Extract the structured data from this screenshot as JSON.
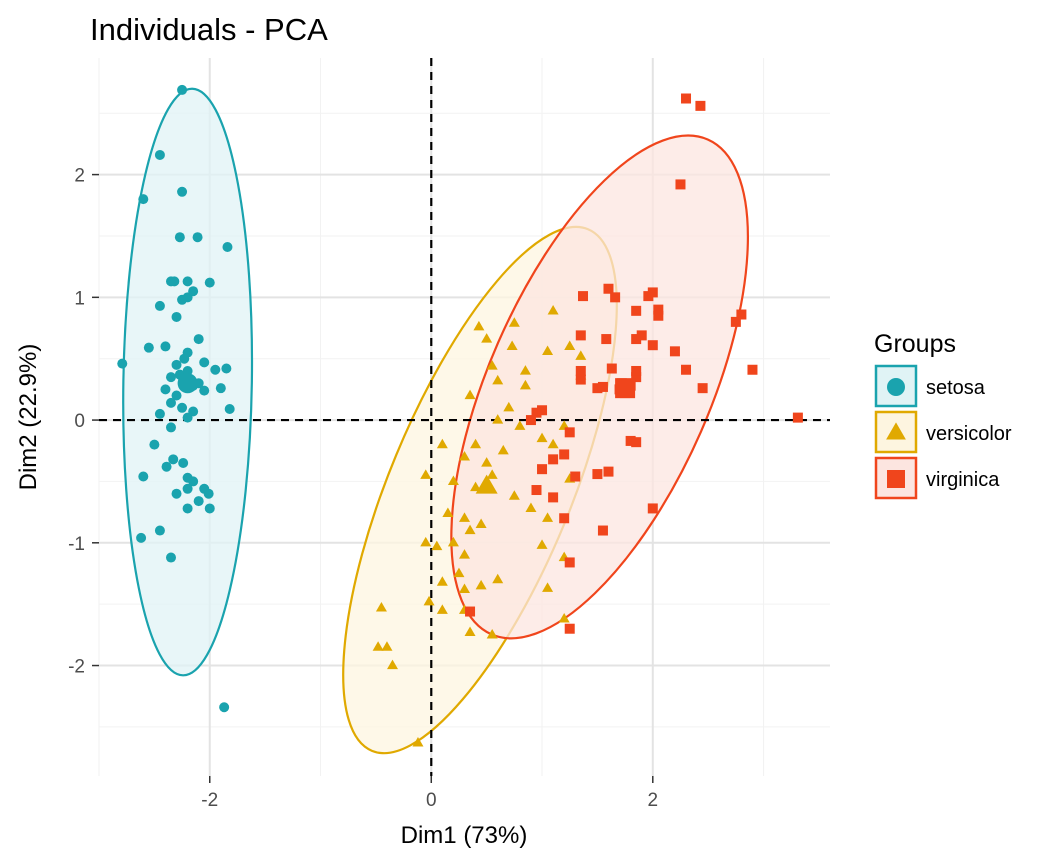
{
  "chart_data": {
    "type": "scatter",
    "title": "Individuals - PCA",
    "xlabel": "Dim1 (73%)",
    "ylabel": "Dim2 (22.9%)",
    "xlim": [
      -3.0,
      3.6
    ],
    "ylim": [
      -2.9,
      2.95
    ],
    "x_ticks": [
      -2,
      0,
      2
    ],
    "x_tick_labels": [
      "-2",
      "0",
      "2"
    ],
    "y_ticks": [
      -2,
      -1,
      0,
      1,
      2
    ],
    "y_tick_labels": [
      "-2",
      "-1",
      "0",
      "1",
      "2"
    ],
    "grid": true,
    "reference_lines": {
      "x": 0,
      "y": 0,
      "style": "dashed"
    },
    "legend": {
      "title": "Groups",
      "placement": "right"
    },
    "series": [
      {
        "name": "setosa",
        "marker": "circle",
        "color": "#1AA3AE",
        "fill": "#E0F3F5",
        "ellipse": {
          "cx": -2.2,
          "cy": 0.31,
          "rx": 0.58,
          "ry": 2.39,
          "angle": 0.9
        },
        "centroid": [
          -2.2,
          0.3
        ],
        "points": [
          [
            -2.25,
            2.69
          ],
          [
            -2.25,
            1.86
          ],
          [
            -2.27,
            1.49
          ],
          [
            -2.11,
            1.49
          ],
          [
            -1.84,
            1.41
          ],
          [
            -2.6,
            1.8
          ],
          [
            -2.45,
            2.16
          ],
          [
            -2.35,
            1.13
          ],
          [
            -2.32,
            1.13
          ],
          [
            -2.2,
            1.13
          ],
          [
            -2.25,
            0.98
          ],
          [
            -2.2,
            1.0
          ],
          [
            -2.15,
            1.05
          ],
          [
            -2.0,
            1.12
          ],
          [
            -2.45,
            0.93
          ],
          [
            -2.3,
            0.84
          ],
          [
            -2.1,
            0.66
          ],
          [
            -2.2,
            0.55
          ],
          [
            -2.55,
            0.59
          ],
          [
            -2.4,
            0.6
          ],
          [
            -2.23,
            0.5
          ],
          [
            -2.3,
            0.45
          ],
          [
            -2.27,
            0.37
          ],
          [
            -2.05,
            0.47
          ],
          [
            -1.95,
            0.41
          ],
          [
            -1.85,
            0.42
          ],
          [
            -2.79,
            0.46
          ],
          [
            -2.35,
            0.35
          ],
          [
            -2.2,
            0.4
          ],
          [
            -2.15,
            0.28
          ],
          [
            -2.4,
            0.25
          ],
          [
            -2.3,
            0.2
          ],
          [
            -2.1,
            0.3
          ],
          [
            -2.05,
            0.24
          ],
          [
            -1.9,
            0.26
          ],
          [
            -2.35,
            0.14
          ],
          [
            -2.25,
            0.1
          ],
          [
            -2.15,
            0.07
          ],
          [
            -2.45,
            0.05
          ],
          [
            -2.2,
            0.02
          ],
          [
            -1.82,
            0.09
          ],
          [
            -2.35,
            -0.06
          ],
          [
            -2.5,
            -0.2
          ],
          [
            -2.39,
            -0.38
          ],
          [
            -2.33,
            -0.32
          ],
          [
            -2.24,
            -0.35
          ],
          [
            -2.2,
            -0.47
          ],
          [
            -2.15,
            -0.5
          ],
          [
            -2.05,
            -0.56
          ],
          [
            -2.2,
            -0.56
          ],
          [
            -2.01,
            -0.6
          ],
          [
            -2.3,
            -0.6
          ],
          [
            -2.1,
            -0.66
          ],
          [
            -2.0,
            -0.72
          ],
          [
            -2.2,
            -0.72
          ],
          [
            -2.45,
            -0.9
          ],
          [
            -2.62,
            -0.96
          ],
          [
            -2.6,
            -0.46
          ],
          [
            -2.35,
            -1.12
          ],
          [
            -1.87,
            -2.34
          ]
        ]
      },
      {
        "name": "versicolor",
        "marker": "triangle",
        "color": "#E0A900",
        "fill": "#FDF5E0",
        "ellipse": {
          "cx": 0.44,
          "cy": -0.57,
          "rx": 0.82,
          "ry": 2.3,
          "angle": 22.5
        },
        "centroid": [
          0.5,
          -0.54
        ],
        "points": [
          [
            0.43,
            0.76
          ],
          [
            0.75,
            0.79
          ],
          [
            1.1,
            0.89
          ],
          [
            0.5,
            0.66
          ],
          [
            0.73,
            0.6
          ],
          [
            1.05,
            0.56
          ],
          [
            0.85,
            0.4
          ],
          [
            0.55,
            0.44
          ],
          [
            0.6,
            0.32
          ],
          [
            0.85,
            0.28
          ],
          [
            1.35,
            0.52
          ],
          [
            1.35,
            0.36
          ],
          [
            1.25,
            0.6
          ],
          [
            0.35,
            0.2
          ],
          [
            0.7,
            0.1
          ],
          [
            0.6,
            0.0
          ],
          [
            0.8,
            -0.05
          ],
          [
            0.4,
            -0.2
          ],
          [
            0.1,
            -0.2
          ],
          [
            0.3,
            -0.3
          ],
          [
            0.5,
            -0.35
          ],
          [
            0.65,
            -0.25
          ],
          [
            0.2,
            -0.5
          ],
          [
            0.4,
            -0.55
          ],
          [
            0.55,
            -0.45
          ],
          [
            1.0,
            -0.15
          ],
          [
            1.2,
            -0.05
          ],
          [
            1.1,
            -0.2
          ],
          [
            1.25,
            -0.48
          ],
          [
            0.75,
            -0.62
          ],
          [
            0.9,
            -0.72
          ],
          [
            1.05,
            -0.8
          ],
          [
            0.15,
            -0.76
          ],
          [
            0.3,
            -0.8
          ],
          [
            0.35,
            -0.9
          ],
          [
            0.2,
            -1.0
          ],
          [
            0.45,
            -0.85
          ],
          [
            0.3,
            -1.1
          ],
          [
            0.25,
            -1.25
          ],
          [
            1.0,
            -1.02
          ],
          [
            1.2,
            -1.12
          ],
          [
            -0.05,
            -1.0
          ],
          [
            0.1,
            -1.32
          ],
          [
            0.3,
            -1.38
          ],
          [
            0.1,
            -1.55
          ],
          [
            0.3,
            -1.55
          ],
          [
            0.45,
            -1.35
          ],
          [
            0.6,
            -1.3
          ],
          [
            1.05,
            -1.37
          ],
          [
            -0.45,
            -1.53
          ],
          [
            -0.02,
            -1.48
          ],
          [
            0.05,
            -1.03
          ],
          [
            -0.05,
            -0.45
          ],
          [
            1.2,
            -1.62
          ],
          [
            0.55,
            -1.75
          ],
          [
            0.35,
            -1.73
          ],
          [
            -0.48,
            -1.85
          ],
          [
            -0.35,
            -2.0
          ],
          [
            -0.12,
            -2.63
          ],
          [
            -0.4,
            -1.85
          ]
        ]
      },
      {
        "name": "virginica",
        "marker": "square",
        "color": "#F0451C",
        "fill": "#FCE5E0",
        "ellipse": {
          "cx": 1.52,
          "cy": 0.27,
          "rx": 1.0,
          "ry": 2.2,
          "angle": 23.6
        },
        "centroid": [
          1.75,
          0.26
        ],
        "points": [
          [
            2.3,
            2.62
          ],
          [
            2.43,
            2.56
          ],
          [
            2.25,
            1.92
          ],
          [
            1.37,
            1.01
          ],
          [
            1.6,
            1.07
          ],
          [
            1.66,
            1.0
          ],
          [
            1.96,
            1.01
          ],
          [
            2.0,
            1.04
          ],
          [
            1.85,
            0.89
          ],
          [
            2.05,
            0.9
          ],
          [
            2.05,
            0.85
          ],
          [
            1.35,
            0.69
          ],
          [
            1.58,
            0.66
          ],
          [
            1.85,
            0.66
          ],
          [
            1.9,
            0.69
          ],
          [
            2.0,
            0.61
          ],
          [
            2.2,
            0.56
          ],
          [
            2.75,
            0.8
          ],
          [
            2.8,
            0.86
          ],
          [
            2.9,
            0.41
          ],
          [
            2.3,
            0.41
          ],
          [
            1.35,
            0.4
          ],
          [
            1.63,
            0.42
          ],
          [
            1.85,
            0.35
          ],
          [
            1.85,
            0.4
          ],
          [
            1.35,
            0.33
          ],
          [
            1.5,
            0.26
          ],
          [
            1.55,
            0.27
          ],
          [
            1.7,
            0.25
          ],
          [
            1.72,
            0.3
          ],
          [
            1.75,
            0.22
          ],
          [
            1.8,
            0.28
          ],
          [
            2.45,
            0.26
          ],
          [
            3.31,
            0.02
          ],
          [
            0.95,
            0.06
          ],
          [
            1.0,
            0.08
          ],
          [
            0.9,
            0.0
          ],
          [
            1.25,
            -0.1
          ],
          [
            1.8,
            -0.17
          ],
          [
            1.85,
            -0.18
          ],
          [
            1.1,
            -0.32
          ],
          [
            1.2,
            -0.28
          ],
          [
            1.0,
            -0.4
          ],
          [
            1.6,
            -0.42
          ],
          [
            1.5,
            -0.44
          ],
          [
            1.3,
            -0.46
          ],
          [
            0.95,
            -0.57
          ],
          [
            1.1,
            -0.63
          ],
          [
            1.2,
            -0.8
          ],
          [
            2.0,
            -0.72
          ],
          [
            1.55,
            -0.9
          ],
          [
            1.25,
            -1.16
          ],
          [
            0.35,
            -1.56
          ],
          [
            1.25,
            -1.7
          ]
        ]
      }
    ]
  }
}
